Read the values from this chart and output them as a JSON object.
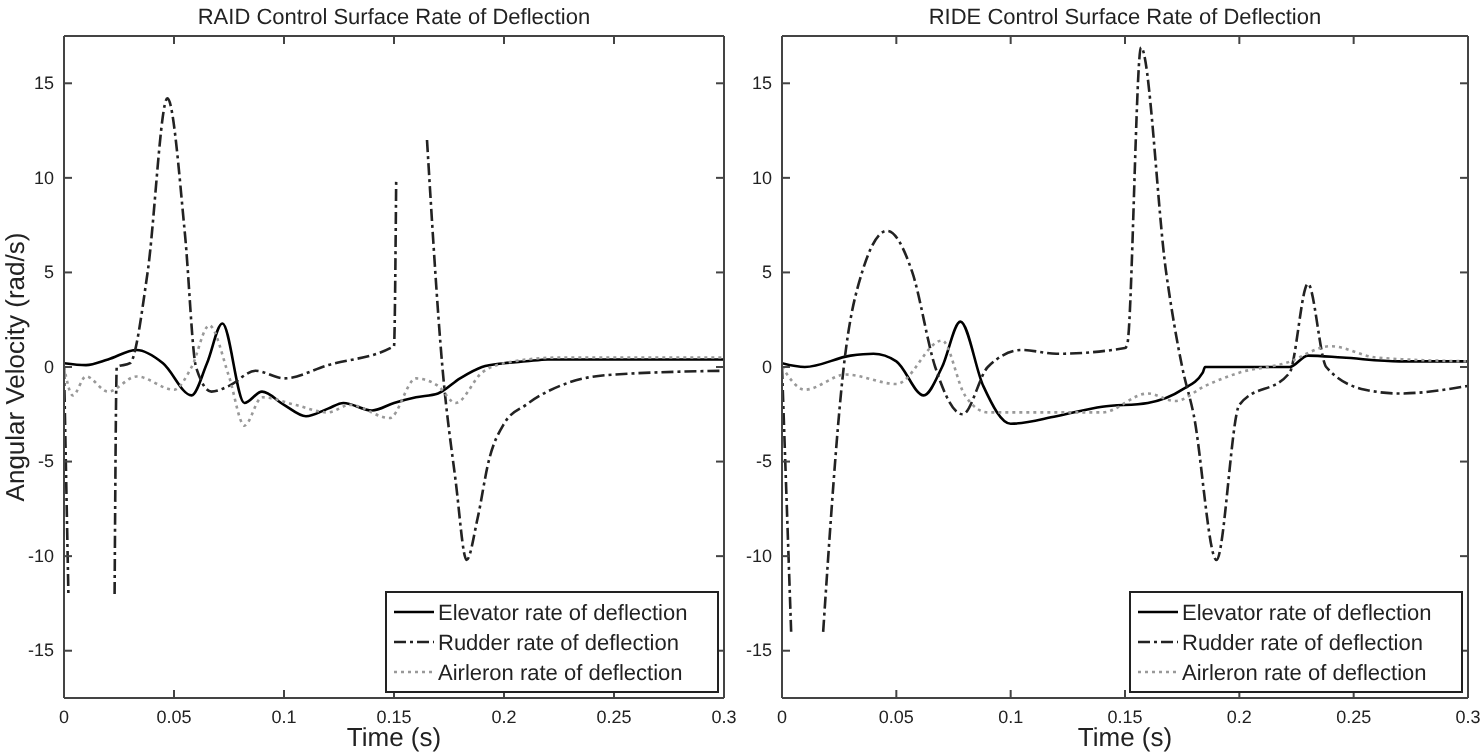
{
  "chart_data": [
    {
      "type": "line",
      "title": "RAID Control Surface Rate of Deflection",
      "xlabel": "Time (s)",
      "ylabel": "Angular Velocity (rad/s)",
      "xlim": [
        0,
        0.3
      ],
      "ylim": [
        -17.5,
        17.5
      ],
      "xticks": [
        0,
        0.05,
        0.1,
        0.15,
        0.2,
        0.25,
        0.3
      ],
      "yticks": [
        -15,
        -10,
        -5,
        0,
        5,
        10,
        15
      ],
      "grid": false,
      "legend": "bottom right",
      "marker": "none",
      "series": [
        {
          "name": "Elevator rate of deflection",
          "color": "#000000",
          "line_style": "solid",
          "x": [
            0,
            0.01,
            0.02,
            0.033,
            0.045,
            0.058,
            0.065,
            0.072,
            0.082,
            0.09,
            0.1,
            0.11,
            0.12,
            0.127,
            0.14,
            0.15,
            0.16,
            0.17,
            0.18,
            0.19,
            0.2,
            0.21,
            0.22,
            0.25,
            0.3
          ],
          "values": [
            0.2,
            0.1,
            0.4,
            0.9,
            0.2,
            -1.5,
            0.2,
            2.3,
            -1.9,
            -1.3,
            -2,
            -2.6,
            -2.2,
            -1.9,
            -2.3,
            -1.9,
            -1.6,
            -1.4,
            -0.6,
            0,
            0.2,
            0.3,
            0.4,
            0.4,
            0.4
          ]
        },
        {
          "name": "Rudder rate of deflection",
          "color": "#222222",
          "line_style": "dashdot",
          "x": [
            0,
            0.002,
            0.012,
            0.023,
            0.024,
            0.03,
            0.038,
            0.047,
            0.055,
            0.06,
            0.067,
            0.075,
            0.087,
            0.1,
            0.12,
            0.15,
            0.151,
            0.157,
            0.165,
            0.172,
            0.178,
            0.183,
            0.188,
            0.193,
            0.2,
            0.21,
            0.23,
            0.25,
            0.3
          ],
          "values": [
            0,
            -12,
            null,
            -12,
            0,
            0.2,
            5,
            14.2,
            7,
            0,
            -1.3,
            -1,
            -0.2,
            -0.6,
            0.1,
            1.1,
            10,
            null,
            12,
            0,
            -6,
            -10.2,
            -8,
            -5,
            -3,
            -2,
            -0.8,
            -0.4,
            -0.2
          ]
        },
        {
          "name": "Airleron rate of deflection",
          "color": "#999999",
          "line_style": "dotted",
          "x": [
            0,
            0.004,
            0.01,
            0.02,
            0.033,
            0.05,
            0.058,
            0.066,
            0.075,
            0.082,
            0.09,
            0.105,
            0.12,
            0.13,
            0.148,
            0.16,
            0.17,
            0.178,
            0.19,
            0.2,
            0.225,
            0.3
          ],
          "values": [
            0,
            -1.5,
            -0.5,
            -1.3,
            -0.5,
            -1.2,
            0,
            2.2,
            -0.5,
            -3.1,
            -1.6,
            -2,
            -2.4,
            -2,
            -2.7,
            -0.6,
            -1,
            -1.9,
            -0.3,
            0.2,
            0.5,
            0.5
          ]
        }
      ]
    },
    {
      "type": "line",
      "title": "RIDE Control Surface Rate of Deflection",
      "xlabel": "Time (s)",
      "xlim": [
        0,
        0.3
      ],
      "ylim": [
        -17.5,
        17.5
      ],
      "xticks": [
        0,
        0.05,
        0.1,
        0.15,
        0.2,
        0.25,
        0.3
      ],
      "yticks": [
        -15,
        -10,
        -5,
        0,
        5,
        10,
        15
      ],
      "grid": false,
      "legend": "bottom right",
      "marker": "none",
      "series": [
        {
          "name": "Elevator rate of deflection",
          "color": "#000000",
          "line_style": "solid",
          "x": [
            0,
            0.01,
            0.03,
            0.04,
            0.05,
            0.062,
            0.07,
            0.078,
            0.088,
            0.1,
            0.12,
            0.14,
            0.16,
            0.175,
            0.184,
            0.185,
            0.222,
            0.23,
            0.245,
            0.27,
            0.3
          ],
          "values": [
            0.2,
            0,
            0.6,
            0.7,
            0.3,
            -1.5,
            0,
            2.4,
            -1,
            -3,
            -2.6,
            -2.1,
            -1.9,
            -1.2,
            -0.3,
            0,
            0,
            0.6,
            0.5,
            0.3,
            0.3
          ]
        },
        {
          "name": "Rudder rate of deflection",
          "color": "#222222",
          "line_style": "dashdot",
          "x": [
            0,
            0.004,
            0.011,
            0.018,
            0.027,
            0.035,
            0.046,
            0.057,
            0.067,
            0.079,
            0.09,
            0.105,
            0.12,
            0.15,
            0.151,
            0.157,
            0.168,
            0.175,
            0.18,
            0.19,
            0.2,
            0.222,
            0.23,
            0.238,
            0.255,
            0.27,
            0.3
          ],
          "values": [
            0,
            -14,
            null,
            -14,
            0,
            5,
            7.2,
            5,
            0,
            -2.5,
            0,
            0.9,
            0.7,
            1,
            1.2,
            16.9,
            5,
            0,
            -2.5,
            -10.2,
            -2,
            -0.3,
            4.4,
            0,
            -1.2,
            -1.4,
            -1
          ]
        },
        {
          "name": "Airleron rate of deflection",
          "color": "#999999",
          "line_style": "dotted",
          "x": [
            0,
            0.01,
            0.028,
            0.05,
            0.07,
            0.08,
            0.09,
            0.14,
            0.16,
            0.172,
            0.185,
            0.2,
            0.22,
            0.24,
            0.26,
            0.3
          ],
          "values": [
            0,
            -1.2,
            -0.4,
            -0.9,
            1.4,
            -1.5,
            -2.4,
            -2.4,
            -1.4,
            -1.8,
            -1,
            -0.3,
            0.2,
            1.1,
            0.5,
            0.3
          ]
        }
      ]
    }
  ]
}
